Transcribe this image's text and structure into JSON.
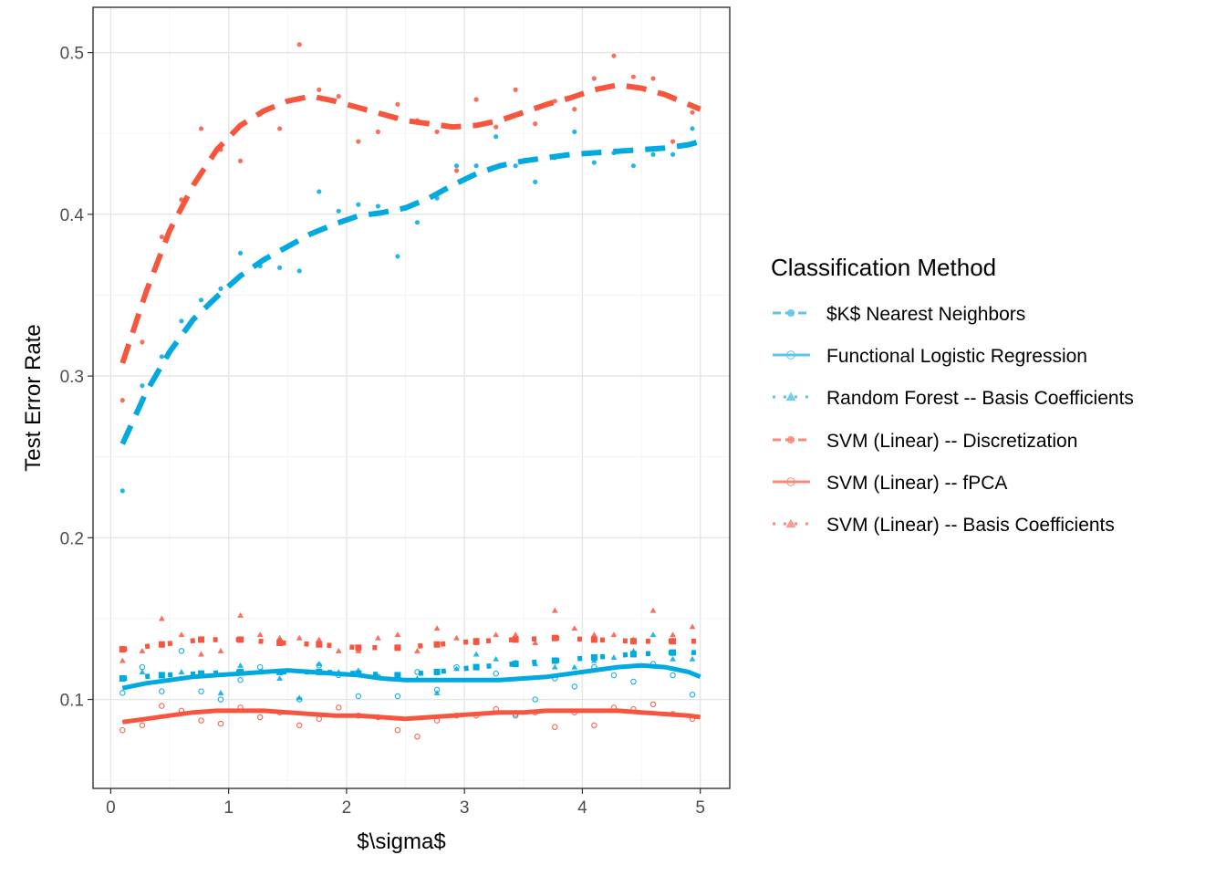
{
  "chart_data": {
    "type": "scatter",
    "title": "",
    "xlabel": "$\\sigma$",
    "ylabel": "Test Error Rate",
    "xlim": [
      -0.15,
      5.25
    ],
    "ylim": [
      0.045,
      0.528
    ],
    "xticks": [
      0,
      1,
      2,
      3,
      4,
      5
    ],
    "yticks": [
      0.1,
      0.2,
      0.3,
      0.4,
      0.5
    ],
    "xtick_labels": [
      "0",
      "1",
      "2",
      "3",
      "4",
      "5"
    ],
    "ytick_labels": [
      "0.1",
      "0.2",
      "0.3",
      "0.4",
      "0.5"
    ],
    "grid": true,
    "legend": {
      "title": "Classification Method",
      "position": "right",
      "entries": [
        "$K$ Nearest Neighbors",
        "Functional Logistic Regression",
        "Random Forest -- Basis Coefficients",
        "SVM (Linear) -- Discretization",
        "SVM (Linear) -- fPCA",
        "SVM (Linear) -- Basis Coefficients"
      ]
    },
    "x": [
      0.1,
      0.267,
      0.433,
      0.6,
      0.767,
      0.933,
      1.1,
      1.267,
      1.433,
      1.6,
      1.767,
      1.933,
      2.1,
      2.267,
      2.433,
      2.6,
      2.767,
      2.933,
      3.1,
      3.267,
      3.433,
      3.6,
      3.767,
      3.933,
      4.1,
      4.267,
      4.433,
      4.6,
      4.767,
      4.933
    ],
    "series": [
      {
        "name": "$K$ Nearest Neighbors",
        "color": "#00A9E0",
        "line": "dashed-thick",
        "marker": "dot",
        "values": [
          0.229,
          0.294,
          0.312,
          0.334,
          0.347,
          0.354,
          0.376,
          0.368,
          0.367,
          0.365,
          0.414,
          0.402,
          0.406,
          0.405,
          0.374,
          0.395,
          0.41,
          0.43,
          0.43,
          0.448,
          0.43,
          0.42,
          0.435,
          0.451,
          0.432,
          0.438,
          0.43,
          0.437,
          0.437,
          0.453
        ],
        "smooth_x": [
          0.1,
          0.3,
          0.5,
          0.7,
          0.9,
          1.1,
          1.3,
          1.5,
          1.7,
          1.9,
          2.1,
          2.3,
          2.5,
          2.7,
          2.9,
          3.1,
          3.3,
          3.5,
          3.7,
          3.9,
          4.1,
          4.3,
          4.5,
          4.7,
          4.9,
          5.0
        ],
        "smooth_y": [
          0.258,
          0.29,
          0.315,
          0.335,
          0.349,
          0.362,
          0.372,
          0.38,
          0.388,
          0.394,
          0.399,
          0.401,
          0.404,
          0.41,
          0.418,
          0.425,
          0.43,
          0.433,
          0.435,
          0.437,
          0.438,
          0.439,
          0.44,
          0.441,
          0.443,
          0.445
        ]
      },
      {
        "name": "Functional Logistic Regression",
        "color": "#00A9E0",
        "line": "solid-thick",
        "marker": "open-circle",
        "values": [
          0.104,
          0.12,
          0.105,
          0.13,
          0.105,
          0.1,
          0.112,
          0.12,
          0.136,
          0.1,
          0.121,
          0.115,
          0.102,
          0.114,
          0.102,
          0.117,
          0.106,
          0.12,
          0.12,
          0.116,
          0.09,
          0.1,
          0.113,
          0.108,
          0.12,
          0.115,
          0.111,
          0.122,
          0.115,
          0.103
        ],
        "smooth_x": [
          0.1,
          0.3,
          0.5,
          0.7,
          0.9,
          1.1,
          1.3,
          1.5,
          1.7,
          1.9,
          2.1,
          2.3,
          2.5,
          2.7,
          2.9,
          3.1,
          3.3,
          3.5,
          3.7,
          3.9,
          4.1,
          4.3,
          4.5,
          4.7,
          4.9,
          5.0
        ],
        "smooth_y": [
          0.107,
          0.11,
          0.112,
          0.114,
          0.115,
          0.116,
          0.117,
          0.118,
          0.117,
          0.116,
          0.115,
          0.113,
          0.112,
          0.112,
          0.112,
          0.112,
          0.112,
          0.113,
          0.114,
          0.116,
          0.118,
          0.12,
          0.121,
          0.12,
          0.117,
          0.114
        ]
      },
      {
        "name": "Random Forest -- Basis Coefficients",
        "color": "#00A9E0",
        "line": "dotted",
        "marker": "triangle",
        "values": [
          0.113,
          0.117,
          0.115,
          0.117,
          0.116,
          0.104,
          0.121,
          0.117,
          0.113,
          0.101,
          0.122,
          0.117,
          0.118,
          0.114,
          0.113,
          0.113,
          0.104,
          0.119,
          0.128,
          0.125,
          0.123,
          0.122,
          0.12,
          0.12,
          0.124,
          0.126,
          0.13,
          0.14,
          0.125,
          0.125
        ],
        "smooth_x": [
          0.1,
          0.433,
          0.767,
          1.1,
          1.433,
          1.767,
          2.1,
          2.433,
          2.767,
          3.1,
          3.433,
          3.767,
          4.1,
          4.433,
          4.767,
          5.0
        ],
        "smooth_y": [
          0.113,
          0.115,
          0.116,
          0.117,
          0.117,
          0.117,
          0.116,
          0.115,
          0.117,
          0.12,
          0.122,
          0.124,
          0.126,
          0.128,
          0.129,
          0.129
        ]
      },
      {
        "name": "SVM (Linear) -- Discretization",
        "color": "#F8553F",
        "line": "dashed-thick",
        "marker": "dot",
        "values": [
          0.285,
          0.321,
          0.386,
          0.409,
          0.453,
          0.44,
          0.433,
          0.462,
          0.453,
          0.505,
          0.477,
          0.473,
          0.445,
          0.451,
          0.468,
          0.458,
          0.451,
          0.427,
          0.471,
          0.454,
          0.477,
          0.456,
          0.47,
          0.465,
          0.484,
          0.498,
          0.485,
          0.484,
          0.445,
          0.463
        ],
        "smooth_x": [
          0.1,
          0.3,
          0.5,
          0.7,
          0.9,
          1.1,
          1.3,
          1.5,
          1.7,
          1.9,
          2.1,
          2.3,
          2.5,
          2.7,
          2.9,
          3.1,
          3.3,
          3.5,
          3.7,
          3.9,
          4.1,
          4.3,
          4.5,
          4.7,
          4.9,
          5.0
        ],
        "smooth_y": [
          0.308,
          0.352,
          0.39,
          0.418,
          0.44,
          0.455,
          0.464,
          0.47,
          0.473,
          0.47,
          0.466,
          0.462,
          0.458,
          0.456,
          0.454,
          0.455,
          0.458,
          0.463,
          0.468,
          0.472,
          0.477,
          0.48,
          0.478,
          0.474,
          0.468,
          0.465
        ]
      },
      {
        "name": "SVM (Linear) -- fPCA",
        "color": "#F8553F",
        "line": "solid-thick",
        "marker": "open-circle",
        "values": [
          0.081,
          0.084,
          0.096,
          0.093,
          0.087,
          0.085,
          0.095,
          0.089,
          0.092,
          0.084,
          0.088,
          0.095,
          0.09,
          0.089,
          0.081,
          0.077,
          0.087,
          0.09,
          0.09,
          0.094,
          0.091,
          0.092,
          0.083,
          0.092,
          0.084,
          0.095,
          0.094,
          0.097,
          0.091,
          0.088
        ],
        "smooth_x": [
          0.1,
          0.3,
          0.5,
          0.7,
          0.9,
          1.1,
          1.3,
          1.5,
          1.7,
          1.9,
          2.1,
          2.3,
          2.5,
          2.7,
          2.9,
          3.1,
          3.3,
          3.5,
          3.7,
          3.9,
          4.1,
          4.3,
          4.5,
          4.7,
          4.9,
          5.0
        ],
        "smooth_y": [
          0.086,
          0.088,
          0.09,
          0.092,
          0.093,
          0.093,
          0.093,
          0.092,
          0.091,
          0.09,
          0.09,
          0.089,
          0.088,
          0.089,
          0.09,
          0.091,
          0.092,
          0.092,
          0.093,
          0.093,
          0.093,
          0.093,
          0.092,
          0.091,
          0.09,
          0.089
        ]
      },
      {
        "name": "SVM (Linear) -- Basis Coefficients",
        "color": "#F8553F",
        "line": "dotted",
        "marker": "triangle",
        "values": [
          0.124,
          0.13,
          0.15,
          0.14,
          0.128,
          0.13,
          0.152,
          0.14,
          0.138,
          0.138,
          0.137,
          0.13,
          0.13,
          0.138,
          0.14,
          0.13,
          0.144,
          0.138,
          0.135,
          0.14,
          0.14,
          0.135,
          0.155,
          0.144,
          0.14,
          0.14,
          0.137,
          0.155,
          0.14,
          0.145
        ],
        "smooth_x": [
          0.1,
          0.433,
          0.767,
          1.1,
          1.433,
          1.767,
          2.1,
          2.433,
          2.767,
          3.1,
          3.433,
          3.767,
          4.1,
          4.433,
          4.767,
          5.0
        ],
        "smooth_y": [
          0.131,
          0.134,
          0.137,
          0.137,
          0.135,
          0.134,
          0.132,
          0.132,
          0.134,
          0.136,
          0.137,
          0.138,
          0.137,
          0.136,
          0.136,
          0.136
        ]
      }
    ]
  }
}
